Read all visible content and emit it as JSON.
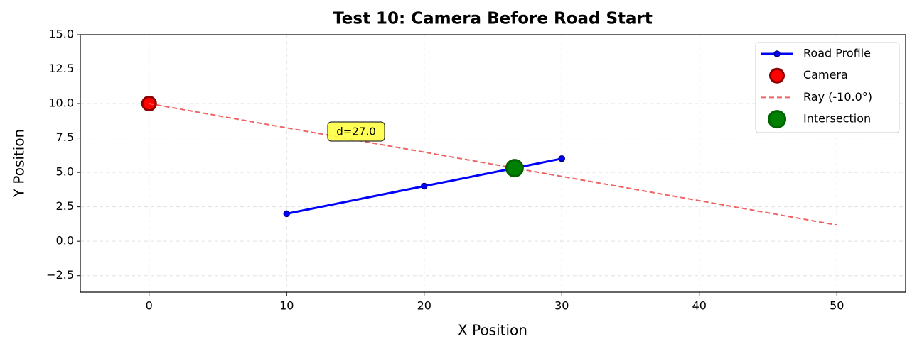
{
  "chart_data": {
    "type": "line",
    "title": "Test 10: Camera Before Road Start",
    "x_label": "X Position",
    "y_label": "Y Position",
    "xlim": [
      -5,
      55
    ],
    "ylim": [
      -3.7,
      15
    ],
    "xticks": [
      0,
      10,
      20,
      30,
      40,
      50
    ],
    "yticks": [
      {
        "value": -2.5,
        "label": "−2.5"
      },
      {
        "value": 0,
        "label": "0.0"
      },
      {
        "value": 2.5,
        "label": "2.5"
      },
      {
        "value": 5,
        "label": "5.0"
      },
      {
        "value": 7.5,
        "label": "7.5"
      },
      {
        "value": 10,
        "label": "10.0"
      },
      {
        "value": 12.5,
        "label": "12.5"
      },
      {
        "value": 15,
        "label": "15.0"
      }
    ],
    "grid": true,
    "legend": "upper right",
    "series": [
      {
        "name": "Road Profile",
        "color": "#0000ff",
        "edgecolor": "#00008b",
        "linestyle": "solid",
        "marker": "small",
        "x": [
          10,
          20,
          30
        ],
        "values": [
          2,
          4,
          6
        ]
      },
      {
        "name": "Camera",
        "color": "#ff0000",
        "edgecolor": "#8b0000",
        "linestyle": "none",
        "marker": "medium",
        "x": [
          0
        ],
        "values": [
          10
        ]
      },
      {
        "name": "Ray (-10.0°)",
        "color": "#f06262",
        "edgecolor": "#f06262",
        "linestyle": "dashed",
        "marker": "none",
        "x": [
          0,
          50
        ],
        "values": [
          10,
          1.18
        ]
      },
      {
        "name": "Intersection",
        "color": "#008000",
        "edgecolor": "#006400",
        "linestyle": "none",
        "marker": "large",
        "x": [
          26.57
        ],
        "values": [
          5.31
        ]
      }
    ],
    "annotations": [
      "d=27.0"
    ]
  }
}
